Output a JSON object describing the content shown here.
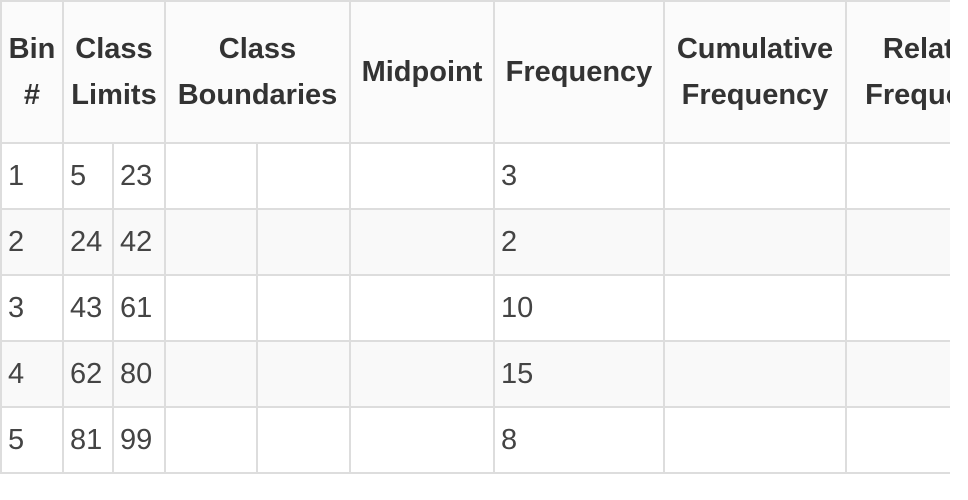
{
  "table": {
    "headers": {
      "bin": {
        "line1": "Bin",
        "line2": "#"
      },
      "class_limits": {
        "line1": "Class",
        "line2": "Limits"
      },
      "class_boundaries": {
        "line1": "Class",
        "line2": "Boundaries"
      },
      "midpoint": {
        "line1": "Midpoint"
      },
      "frequency": {
        "line1": "Frequency"
      },
      "cumulative_frequency": {
        "line1": "Cumulative",
        "line2": "Frequency"
      },
      "relative_frequency": {
        "line1": "Relative",
        "line2": "Frequency"
      }
    },
    "rows": [
      {
        "bin": "1",
        "lower_limit": "5",
        "upper_limit": "23",
        "lower_boundary": "",
        "upper_boundary": "",
        "midpoint": "",
        "frequency": "3",
        "cumulative_frequency": "",
        "relative_frequency": ""
      },
      {
        "bin": "2",
        "lower_limit": "24",
        "upper_limit": "42",
        "lower_boundary": "",
        "upper_boundary": "",
        "midpoint": "",
        "frequency": "2",
        "cumulative_frequency": "",
        "relative_frequency": ""
      },
      {
        "bin": "3",
        "lower_limit": "43",
        "upper_limit": "61",
        "lower_boundary": "",
        "upper_boundary": "",
        "midpoint": "",
        "frequency": "10",
        "cumulative_frequency": "",
        "relative_frequency": ""
      },
      {
        "bin": "4",
        "lower_limit": "62",
        "upper_limit": "80",
        "lower_boundary": "",
        "upper_boundary": "",
        "midpoint": "",
        "frequency": "15",
        "cumulative_frequency": "",
        "relative_frequency": ""
      },
      {
        "bin": "5",
        "lower_limit": "81",
        "upper_limit": "99",
        "lower_boundary": "",
        "upper_boundary": "",
        "midpoint": "",
        "frequency": "8",
        "cumulative_frequency": "",
        "relative_frequency": ""
      }
    ]
  }
}
